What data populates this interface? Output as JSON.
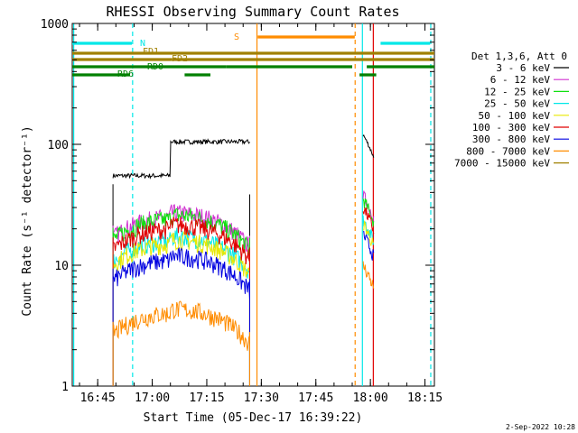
{
  "chart_data": {
    "type": "line",
    "title": "RHESSI Observing Summary Count Rates",
    "xlabel": "Start Time (05-Dec-17 16:39:22)",
    "ylabel": "Count Rate (s⁻¹ detector⁻¹)",
    "y_scale": "log",
    "ylim": [
      1,
      1000
    ],
    "xlim_minutes": [
      -1.4,
      98.2
    ],
    "x_ticks": [
      {
        "label": "16:45",
        "minute": 5.6
      },
      {
        "label": "17:00",
        "minute": 20.6
      },
      {
        "label": "17:15",
        "minute": 35.6
      },
      {
        "label": "17:30",
        "minute": 50.6
      },
      {
        "label": "17:45",
        "minute": 65.6
      },
      {
        "label": "18:00",
        "minute": 80.6
      },
      {
        "label": "18:15",
        "minute": 95.6
      }
    ],
    "y_ticks": [
      {
        "label": "1",
        "value": 1
      },
      {
        "label": "10",
        "value": 10
      },
      {
        "label": "100",
        "value": 100
      },
      {
        "label": "1000",
        "value": 1000
      }
    ],
    "legend_title": "Det 1,3,6, Att 0",
    "legend_placement": "right",
    "series": [
      {
        "name": "3 - 6 keV",
        "color": "#000000",
        "level1": 55,
        "level2": 105,
        "post": 120
      },
      {
        "name": "6 - 12 keV",
        "color": "#d030d0",
        "level1": 25,
        "level2": 27,
        "post": 38
      },
      {
        "name": "12 - 25 keV",
        "color": "#10e010",
        "level1": 24,
        "level2": 27,
        "post": 35
      },
      {
        "name": "25 - 50 keV",
        "color": "#00e8e8",
        "level1": 16,
        "level2": 18,
        "post": 24
      },
      {
        "name": "50 - 100 keV",
        "color": "#e8e800",
        "level1": 15,
        "level2": 17,
        "post": 22
      },
      {
        "name": "100 - 300 keV",
        "color": "#e00000",
        "level1": 20,
        "level2": 22,
        "post": 30
      },
      {
        "name": "300 - 800 keV",
        "color": "#0000e0",
        "level1": 11,
        "level2": 12,
        "post": 18
      },
      {
        "name": "800 - 7000 keV",
        "color": "#ff8c00",
        "level1": 4,
        "level2": 6,
        "post": 10
      },
      {
        "name": "7000 - 15000 keV",
        "color": "#a08000",
        "level1": 0,
        "level2": 0,
        "post": 0
      }
    ],
    "state_bars": [
      {
        "label": "N",
        "color": "#00e8e8",
        "segments": [
          [
            -1.4,
            15.0
          ],
          [
            83.4,
            97.0
          ]
        ]
      },
      {
        "label": "S",
        "color": "#ff8c00",
        "segments": [
          [
            49.6,
            76.3
          ]
        ]
      },
      {
        "label": "FD1",
        "color": "#a08000",
        "segments": [
          [
            -1.4,
            26.0
          ],
          [
            26.0,
            98.2
          ]
        ]
      },
      {
        "label": "FD2",
        "color": "#a08000",
        "segments": [
          [
            -1.4,
            98.2
          ]
        ]
      },
      {
        "label": "RD0",
        "color": "#008000",
        "segments": [
          [
            -1.4,
            41.0
          ],
          [
            41.0,
            75.6
          ],
          [
            79.6,
            98.2
          ]
        ]
      },
      {
        "label": "RD6",
        "color": "#008000",
        "segments": [
          [
            -1.4,
            14.5
          ],
          [
            29.5,
            36.6
          ],
          [
            77.6,
            82.2
          ]
        ]
      }
    ],
    "vertical_lines": [
      {
        "color": "#00e8e8",
        "minute": -1.0,
        "style": "solid"
      },
      {
        "color": "#00e8e8",
        "minute": 15.2,
        "style": "dashed"
      },
      {
        "color": "#ff8c00",
        "minute": 49.4,
        "style": "solid"
      },
      {
        "color": "#ff8c00",
        "minute": 76.4,
        "style": "dashed"
      },
      {
        "color": "#00e8e8",
        "minute": 78.4,
        "style": "solid"
      },
      {
        "color": "#e00000",
        "minute": 81.4,
        "style": "solid"
      },
      {
        "color": "#00e8e8",
        "minute": 97.2,
        "style": "dashed"
      }
    ],
    "data_intervals": {
      "start": 9.8,
      "step": 15.7,
      "end": 47.4,
      "post_start": 78.6,
      "post_end": 81.5
    }
  },
  "footer_date": "2-Sep-2022 10:28"
}
